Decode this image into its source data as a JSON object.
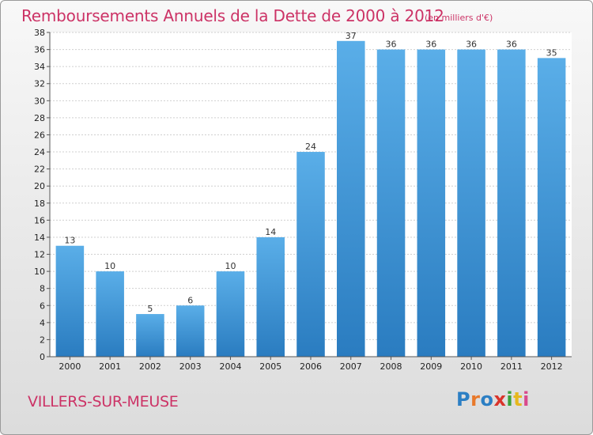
{
  "header": {
    "title": "Remboursements Annuels de la Dette de 2000 à 2012",
    "subtitle": "(en milliers d'€)"
  },
  "footer": {
    "commune": "VILLERS-SUR-MEUSE",
    "logo": "Proxiti"
  },
  "colors": {
    "title": "#cc3366",
    "bar_top": "#5aaee8",
    "bar_bottom": "#2a7cc0",
    "grid": "#cfcfcf"
  },
  "chart_data": {
    "type": "bar",
    "title": "Remboursements Annuels de la Dette de 2000 à 2012",
    "subtitle": "(en milliers d'€)",
    "xlabel": "",
    "ylabel": "",
    "categories": [
      "2000",
      "2001",
      "2002",
      "2003",
      "2004",
      "2005",
      "2006",
      "2007",
      "2008",
      "2009",
      "2010",
      "2011",
      "2012"
    ],
    "values": [
      13,
      10,
      5,
      6,
      10,
      14,
      24,
      37,
      36,
      36,
      36,
      36,
      35
    ],
    "ylim": [
      0,
      38
    ],
    "yticks": [
      0,
      2,
      4,
      6,
      8,
      10,
      12,
      14,
      16,
      18,
      20,
      22,
      24,
      26,
      28,
      30,
      32,
      34,
      36,
      38
    ],
    "grid": true,
    "legend": "none"
  }
}
